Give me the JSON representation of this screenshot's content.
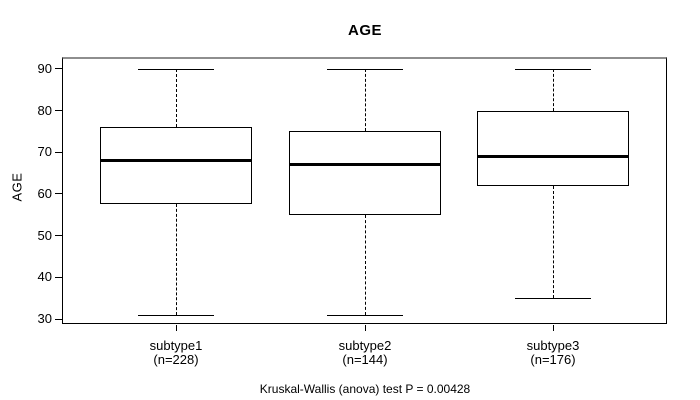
{
  "title": "AGE",
  "y_axis": {
    "label": "AGE"
  },
  "footnote": "Kruskal-Wallis (anova) test P = 0.00428",
  "colors": {
    "line": "#000000",
    "background": "#ffffff",
    "frame_shadow": "#8e8e8e"
  },
  "chart_data": {
    "type": "boxplot",
    "title": "AGE",
    "ylabel": "AGE",
    "xlabel": "",
    "ylim": [
      28.8,
      92.9
    ],
    "yticks": [
      30,
      40,
      50,
      60,
      70,
      80,
      90
    ],
    "grid": false,
    "legend": "none",
    "whisker_style": "dashed",
    "groups": [
      {
        "label": "subtype1",
        "sublabel": "(n=228)",
        "n": 228,
        "whisker_low": 31,
        "q1": 57.5,
        "median": 68,
        "q3": 76,
        "whisker_high": 90
      },
      {
        "label": "subtype2",
        "sublabel": "(n=144)",
        "n": 144,
        "whisker_low": 31,
        "q1": 55,
        "median": 67,
        "q3": 75,
        "whisker_high": 90
      },
      {
        "label": "subtype3",
        "sublabel": "(n=176)",
        "n": 176,
        "whisker_low": 35,
        "q1": 62,
        "median": 69,
        "q3": 80,
        "whisker_high": 90
      }
    ]
  }
}
